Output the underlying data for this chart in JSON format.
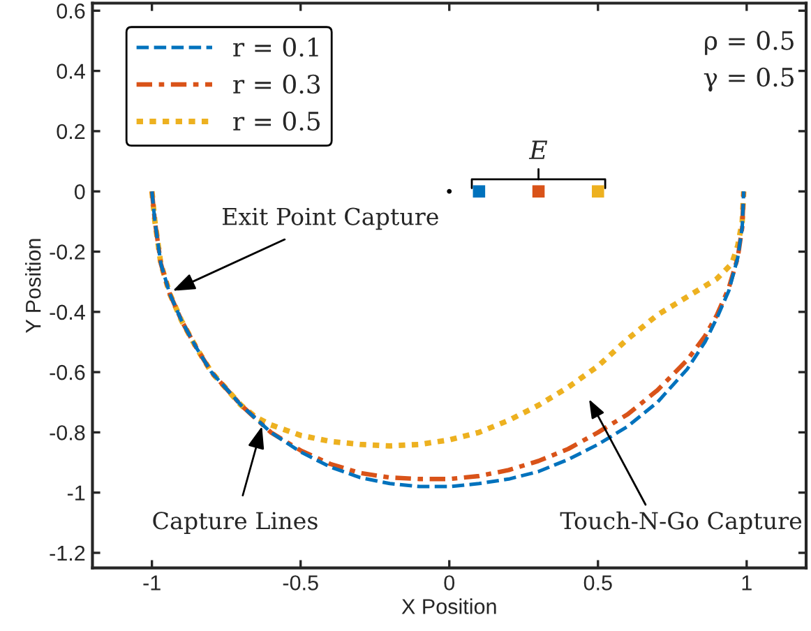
{
  "chart_data": {
    "type": "line",
    "xlabel": "X Position",
    "ylabel": "Y Position",
    "xlim": [
      -1.2,
      1.2
    ],
    "ylim": [
      -1.25,
      0.625
    ],
    "xticks": [
      -1,
      -0.5,
      0,
      0.5,
      1
    ],
    "yticks": [
      -1.2,
      -1,
      -0.8,
      -0.6,
      -0.4,
      -0.2,
      0,
      0.2,
      0.4,
      0.6
    ],
    "grid": false,
    "legend": "top left",
    "series": [
      {
        "name": "r = 0.1",
        "color": "#0072bd",
        "line_style": "dashed",
        "x": [
          -1.0,
          -0.99,
          -0.97,
          -0.94,
          -0.9,
          -0.85,
          -0.8,
          -0.7,
          -0.6,
          -0.5,
          -0.4,
          -0.3,
          -0.2,
          -0.1,
          0,
          0.1,
          0.2,
          0.3,
          0.4,
          0.5,
          0.6,
          0.7,
          0.8,
          0.86,
          0.9,
          0.94,
          0.97,
          0.985,
          0.99
        ],
        "values": [
          0,
          -0.1,
          -0.24,
          -0.34,
          -0.43,
          -0.52,
          -0.6,
          -0.71,
          -0.8,
          -0.865,
          -0.915,
          -0.95,
          -0.97,
          -0.98,
          -0.98,
          -0.97,
          -0.955,
          -0.93,
          -0.89,
          -0.84,
          -0.78,
          -0.7,
          -0.59,
          -0.5,
          -0.42,
          -0.33,
          -0.22,
          -0.12,
          0
        ]
      },
      {
        "name": "r = 0.3",
        "color": "#d95319",
        "line_style": "dashdot",
        "x": [
          -1.0,
          -0.99,
          -0.97,
          -0.94,
          -0.9,
          -0.85,
          -0.8,
          -0.7,
          -0.6,
          -0.5,
          -0.4,
          -0.3,
          -0.2,
          -0.1,
          0,
          0.1,
          0.2,
          0.3,
          0.4,
          0.5,
          0.6,
          0.7,
          0.8,
          0.86,
          0.9,
          0.94,
          0.97,
          0.985,
          0.99
        ],
        "values": [
          0,
          -0.1,
          -0.24,
          -0.34,
          -0.43,
          -0.52,
          -0.6,
          -0.71,
          -0.8,
          -0.86,
          -0.905,
          -0.935,
          -0.95,
          -0.955,
          -0.955,
          -0.945,
          -0.925,
          -0.895,
          -0.855,
          -0.8,
          -0.74,
          -0.66,
          -0.56,
          -0.48,
          -0.41,
          -0.32,
          -0.22,
          -0.12,
          0
        ]
      },
      {
        "name": "r = 0.5",
        "color": "#edb120",
        "line_style": "dotted",
        "x": [
          -1.0,
          -0.99,
          -0.97,
          -0.94,
          -0.9,
          -0.85,
          -0.8,
          -0.7,
          -0.65,
          -0.6,
          -0.5,
          -0.4,
          -0.3,
          -0.2,
          -0.1,
          0,
          0.1,
          0.2,
          0.3,
          0.4,
          0.5,
          0.6,
          0.7,
          0.8,
          0.9,
          0.95,
          0.97,
          0.985,
          0.99
        ],
        "values": [
          0,
          -0.1,
          -0.24,
          -0.34,
          -0.43,
          -0.52,
          -0.6,
          -0.71,
          -0.75,
          -0.775,
          -0.81,
          -0.83,
          -0.84,
          -0.845,
          -0.84,
          -0.825,
          -0.8,
          -0.76,
          -0.71,
          -0.65,
          -0.58,
          -0.49,
          -0.41,
          -0.35,
          -0.29,
          -0.24,
          -0.18,
          -0.1,
          0
        ]
      },
      {
        "type": "scatter",
        "marker": "circle",
        "color": "#000000",
        "x": [
          0
        ],
        "values": [
          0
        ]
      },
      {
        "type": "scatter",
        "marker": "square",
        "colors": [
          "#0072bd",
          "#d95319",
          "#edb120"
        ],
        "x": [
          0.1,
          0.3,
          0.5
        ],
        "values": [
          0,
          0,
          0
        ]
      }
    ],
    "annotations": [
      "ρ = 0.5",
      "γ = 0.5",
      "E",
      {
        "text": "Exit Point Capture",
        "x": -0.93,
        "y": -0.33
      },
      {
        "text": "Capture Lines",
        "x": -0.63,
        "y": -0.78
      },
      "Touch-N-Go Capture"
    ]
  }
}
